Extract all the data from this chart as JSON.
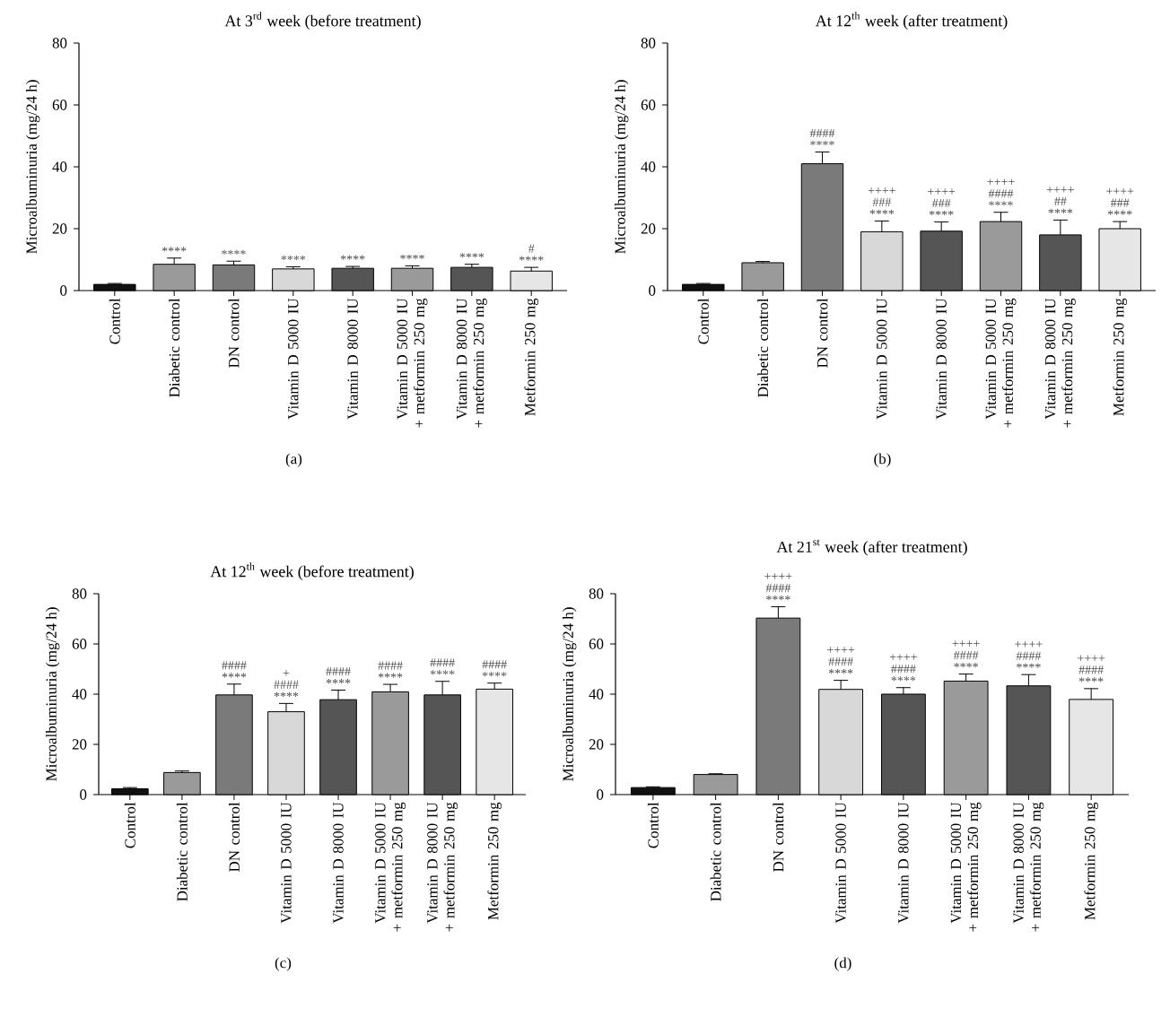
{
  "chart_data": [
    {
      "type": "bar",
      "title": "At 3$^{rd}$ week (before treatment)",
      "ylabel": "Microalbuminuria (mg/24 h)",
      "categories": [
        "Control",
        "Diabetic control",
        "DN control",
        "Vitamin D 5000 IU",
        "Vitamin D 8000 IU",
        "Vitamin D 5000 IU + metformin 250 mg",
        "Vitamin D 8000 IU + metformin 250 mg",
        "Metformin 250 mg"
      ],
      "values": [
        2,
        8.5,
        8.3,
        7,
        7.2,
        7.2,
        7.5,
        6.3
      ],
      "errors": [
        0.3,
        2,
        1.2,
        0.7,
        0.6,
        0.8,
        1,
        1.2
      ],
      "colors": [
        "#111111",
        "#9a9a9a",
        "#7a7a7a",
        "#d8d8d8",
        "#555555",
        "#9a9a9a",
        "#555555",
        "#e6e6e6"
      ],
      "ylim": [
        0,
        80
      ],
      "yticks": [
        0,
        20,
        40,
        60,
        80
      ],
      "annotations": [
        {
          "text": "****",
          "x": "Diabetic control",
          "y": 10.5
        },
        {
          "text": "****",
          "x": "DN control",
          "y": 9.5
        },
        {
          "text": "****",
          "x": "Vitamin D 5000 IU",
          "y": 7.7
        },
        {
          "text": "****",
          "x": "Vitamin D 8000 IU",
          "y": 7.8
        },
        {
          "text": "****",
          "x": "Vitamin D 5000 IU + metformin 250 mg",
          "y": 8
        },
        {
          "text": "****",
          "x": "Vitamin D 8000 IU + metformin 250 mg",
          "y": 8.5
        },
        {
          "text": "****",
          "x": "Metformin 250 mg",
          "y": 7.5
        },
        {
          "text": "#",
          "x": "Metformin 250 mg",
          "y": 7.5
        },
        "(a)"
      ]
    },
    {
      "type": "bar",
      "title": "At 12$^{th}$ week (after treatment)",
      "ylabel": "Microalbuminuria (mg/24 h)",
      "categories": [
        "Control",
        "Diabetic control",
        "DN control",
        "Vitamin D 5000 IU",
        "Vitamin D 8000 IU",
        "Vitamin D 5000 IU + metformin 250 mg",
        "Vitamin D 8000 IU + metformin 250 mg",
        "Metformin 250 mg"
      ],
      "values": [
        2,
        9,
        41,
        19,
        19.2,
        22.3,
        18,
        20
      ],
      "errors": [
        0.3,
        0.4,
        3.8,
        3.5,
        3,
        3,
        4.8,
        2.3
      ],
      "colors": [
        "#111111",
        "#9a9a9a",
        "#7a7a7a",
        "#d8d8d8",
        "#555555",
        "#9a9a9a",
        "#555555",
        "#e6e6e6"
      ],
      "ylim": [
        0,
        80
      ],
      "yticks": [
        0,
        20,
        40,
        60,
        80
      ],
      "annotations": [
        {
          "text": "****",
          "x": "DN control",
          "y": 44.8
        },
        {
          "text": "####",
          "x": "DN control",
          "y": 44.8
        },
        {
          "text": "****",
          "x": "Vitamin D 5000 IU",
          "y": 22.5
        },
        {
          "text": "###",
          "x": "Vitamin D 5000 IU",
          "y": 22.5
        },
        {
          "text": "++++",
          "x": "Vitamin D 5000 IU",
          "y": 22.5
        },
        {
          "text": "****",
          "x": "Vitamin D 8000 IU",
          "y": 22.2
        },
        {
          "text": "###",
          "x": "Vitamin D 8000 IU",
          "y": 22.2
        },
        {
          "text": "++++",
          "x": "Vitamin D 8000 IU",
          "y": 22.2
        },
        {
          "text": "****",
          "x": "Vitamin D 5000 IU + metformin 250 mg",
          "y": 25.3
        },
        {
          "text": "####",
          "x": "Vitamin D 5000 IU + metformin 250 mg",
          "y": 25.3
        },
        {
          "text": "++++",
          "x": "Vitamin D 5000 IU + metformin 250 mg",
          "y": 25.3
        },
        {
          "text": "****",
          "x": "Vitamin D 8000 IU + metformin 250 mg",
          "y": 22.8
        },
        {
          "text": "##",
          "x": "Vitamin D 8000 IU + metformin 250 mg",
          "y": 22.8
        },
        {
          "text": "++++",
          "x": "Vitamin D 8000 IU + metformin 250 mg",
          "y": 22.8
        },
        {
          "text": "****",
          "x": "Metformin 250 mg",
          "y": 22.3
        },
        {
          "text": "###",
          "x": "Metformin 250 mg",
          "y": 22.3
        },
        {
          "text": "++++",
          "x": "Metformin 250 mg",
          "y": 22.3
        },
        "(b)"
      ]
    },
    {
      "type": "bar",
      "title": "At 12$^{th}$ week (before treatment)",
      "ylabel": "Microalbuminuria (mg/24 h)",
      "categories": [
        "Control",
        "Diabetic control",
        "DN control",
        "Vitamin D 5000 IU",
        "Vitamin D 8000 IU",
        "Vitamin D 5000 IU + metformin 250 mg",
        "Vitamin D 8000 IU + metformin 250 mg",
        "Metformin 250 mg"
      ],
      "values": [
        2.3,
        8.8,
        39.7,
        33,
        37.8,
        40.9,
        39.7,
        42
      ],
      "errors": [
        0.5,
        0.6,
        4.3,
        3.3,
        3.8,
        3,
        5.4,
        2.4
      ],
      "colors": [
        "#111111",
        "#9a9a9a",
        "#7a7a7a",
        "#d8d8d8",
        "#555555",
        "#9a9a9a",
        "#555555",
        "#e6e6e6"
      ],
      "ylim": [
        0,
        80
      ],
      "yticks": [
        0,
        20,
        40,
        60,
        80
      ],
      "annotations": [
        {
          "text": "****",
          "x": "DN control",
          "y": 44
        },
        {
          "text": "####",
          "x": "DN control",
          "y": 44
        },
        {
          "text": "****",
          "x": "Vitamin D 5000 IU",
          "y": 36.3
        },
        {
          "text": "####",
          "x": "Vitamin D 5000 IU",
          "y": 36.3
        },
        {
          "text": "+",
          "x": "Vitamin D 5000 IU",
          "y": 36.3
        },
        {
          "text": "****",
          "x": "Vitamin D 8000 IU",
          "y": 41.6
        },
        {
          "text": "####",
          "x": "Vitamin D 8000 IU",
          "y": 41.6
        },
        {
          "text": "****",
          "x": "Vitamin D 5000 IU + metformin 250 mg",
          "y": 43.9
        },
        {
          "text": "####",
          "x": "Vitamin D 5000 IU + metformin 250 mg",
          "y": 43.9
        },
        {
          "text": "****",
          "x": "Vitamin D 8000 IU + metformin 250 mg",
          "y": 45.1
        },
        {
          "text": "####",
          "x": "Vitamin D 8000 IU + metformin 250 mg",
          "y": 45.1
        },
        {
          "text": "****",
          "x": "Metformin 250 mg",
          "y": 44.4
        },
        {
          "text": "####",
          "x": "Metformin 250 mg",
          "y": 44.4
        },
        "(c)"
      ]
    },
    {
      "type": "bar",
      "title": "At 21$^{st}$ week (after treatment)",
      "ylabel": "Microalbuminuria (mg/24 h)",
      "categories": [
        "Control",
        "Diabetic control",
        "DN control",
        "Vitamin D 5000 IU",
        "Vitamin D 8000 IU",
        "Vitamin D 5000 IU + metformin 250 mg",
        "Vitamin D 8000 IU + metformin 250 mg",
        "Metformin 250 mg"
      ],
      "values": [
        2.8,
        8,
        70.3,
        41.9,
        40,
        45.2,
        43.3,
        37.9
      ],
      "errors": [
        0.3,
        0.3,
        4.5,
        3.6,
        2.6,
        2.8,
        4.5,
        4.3
      ],
      "colors": [
        "#111111",
        "#9a9a9a",
        "#7a7a7a",
        "#d8d8d8",
        "#555555",
        "#9a9a9a",
        "#555555",
        "#e6e6e6"
      ],
      "ylim": [
        0,
        80
      ],
      "yticks": [
        0,
        20,
        40,
        60,
        80
      ],
      "annotations": [
        {
          "text": "****",
          "x": "DN control",
          "y": 74.8
        },
        {
          "text": "####",
          "x": "DN control",
          "y": 74.8
        },
        {
          "text": "++++",
          "x": "DN control",
          "y": 74.8
        },
        {
          "text": "****",
          "x": "Vitamin D 5000 IU",
          "y": 45.5
        },
        {
          "text": "####",
          "x": "Vitamin D 5000 IU",
          "y": 45.5
        },
        {
          "text": "++++",
          "x": "Vitamin D 5000 IU",
          "y": 45.5
        },
        {
          "text": "****",
          "x": "Vitamin D 8000 IU",
          "y": 42.6
        },
        {
          "text": "####",
          "x": "Vitamin D 8000 IU",
          "y": 42.6
        },
        {
          "text": "++++",
          "x": "Vitamin D 8000 IU",
          "y": 42.6
        },
        {
          "text": "****",
          "x": "Vitamin D 5000 IU + metformin 250 mg",
          "y": 48
        },
        {
          "text": "####",
          "x": "Vitamin D 5000 IU + metformin 250 mg",
          "y": 48
        },
        {
          "text": "++++",
          "x": "Vitamin D 5000 IU + metformin 250 mg",
          "y": 48
        },
        {
          "text": "****",
          "x": "Vitamin D 8000 IU + metformin 250 mg",
          "y": 47.8
        },
        {
          "text": "####",
          "x": "Vitamin D 8000 IU + metformin 250 mg",
          "y": 47.8
        },
        {
          "text": "++++",
          "x": "Vitamin D 8000 IU + metformin 250 mg",
          "y": 47.8
        },
        {
          "text": "****",
          "x": "Metformin 250 mg",
          "y": 42.2
        },
        {
          "text": "####",
          "x": "Metformin 250 mg",
          "y": 42.2
        },
        {
          "text": "++++",
          "x": "Metformin 250 mg",
          "y": 42.2
        },
        "(d)"
      ]
    }
  ]
}
